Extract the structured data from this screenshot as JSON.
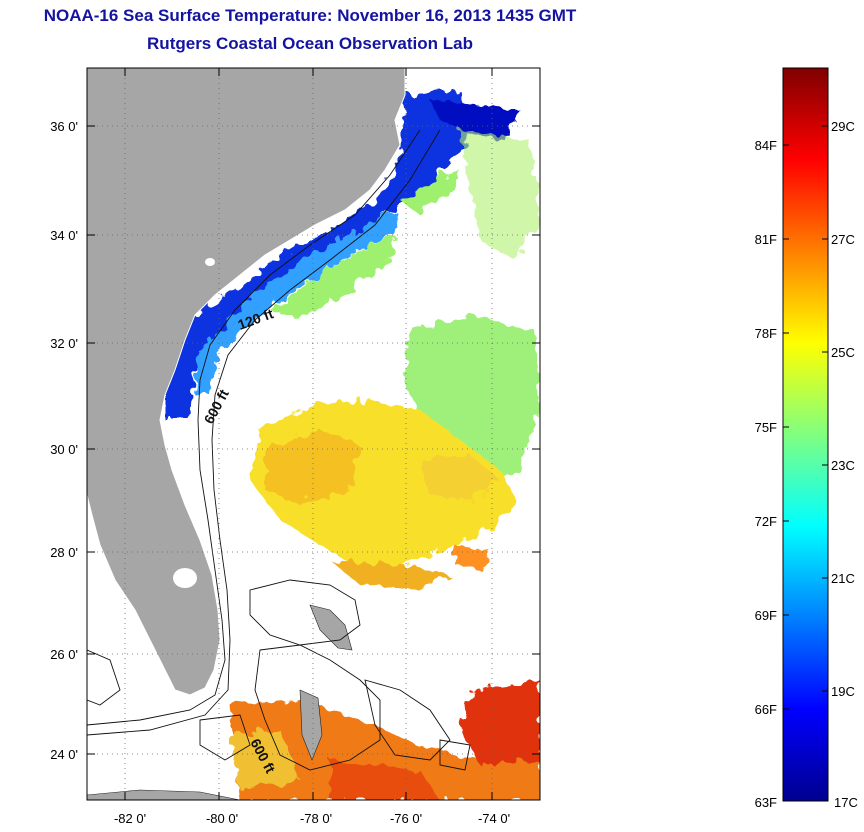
{
  "title": "NOAA-16 Sea Surface Temperature:  November 16, 2013 1435 GMT",
  "subtitle": "Rutgers Coastal Ocean Observation Lab",
  "map": {
    "lon_range": [
      -83,
      -73
    ],
    "lat_range": [
      23,
      37
    ],
    "lon_ticks": [
      "-82 0'",
      "-80 0'",
      "-78 0'",
      "-76 0'",
      "-74 0'"
    ],
    "lat_ticks": [
      "36 0'",
      "34 0'",
      "32 0'",
      "30 0'",
      "28 0'",
      "26 0'",
      "24 0'"
    ],
    "contour_labels": [
      "120 ft",
      "600 ft",
      "600 ft"
    ],
    "land_color": "#a6a6a6",
    "cloud_color": "#ffffff"
  },
  "colorbar": {
    "range_F": [
      63,
      86
    ],
    "fahrenheit_labels": [
      "84F",
      "81F",
      "78F",
      "75F",
      "72F",
      "69F",
      "66F",
      "63F"
    ],
    "celsius_labels": [
      "29C",
      "27C",
      "25C",
      "23C",
      "21C",
      "19C",
      "17C"
    ],
    "colormap": [
      "#00008f",
      "#0000ff",
      "#0080ff",
      "#00ffff",
      "#80ff80",
      "#ffff00",
      "#ff8000",
      "#ff0000",
      "#800000"
    ]
  }
}
